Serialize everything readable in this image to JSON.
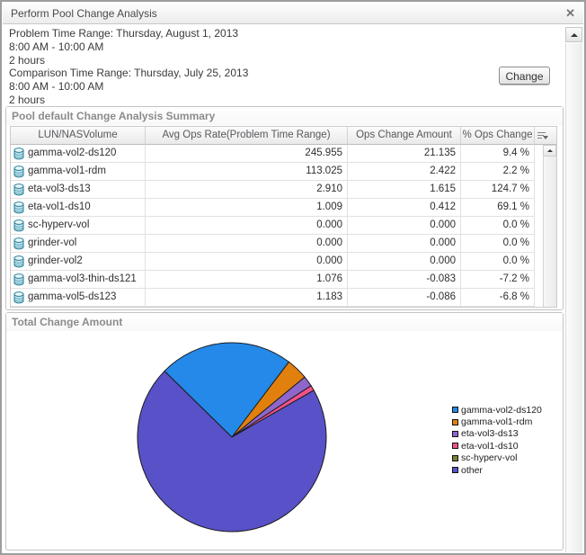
{
  "window": {
    "title": "Perform Pool Change Analysis",
    "close_label": "✕"
  },
  "header": {
    "problem": {
      "range": "Problem Time Range: Thursday, August 1, 2013",
      "time": "8:00 AM - 10:00 AM",
      "duration": "2 hours"
    },
    "comparison": {
      "range": "Comparison Time Range: Thursday, July 25, 2013",
      "time": "8:00 AM - 10:00 AM",
      "duration": "2 hours"
    },
    "change_button": "Change"
  },
  "summary_panel": {
    "title": "Pool default Change Analysis Summary",
    "columns": [
      "LUN/NASVolume",
      "Avg Ops Rate(Problem Time Range)",
      "Ops Change Amount",
      "% Ops Change"
    ],
    "rows": [
      {
        "name": "gamma-vol2-ds120",
        "avg_ops_rate": "245.955",
        "ops_change_amount": "21.135",
        "pct_ops_change": "9.4 %"
      },
      {
        "name": "gamma-vol1-rdm",
        "avg_ops_rate": "113.025",
        "ops_change_amount": "2.422",
        "pct_ops_change": "2.2 %"
      },
      {
        "name": "eta-vol3-ds13",
        "avg_ops_rate": "2.910",
        "ops_change_amount": "1.615",
        "pct_ops_change": "124.7 %"
      },
      {
        "name": "eta-vol1-ds10",
        "avg_ops_rate": "1.009",
        "ops_change_amount": "0.412",
        "pct_ops_change": "69.1 %"
      },
      {
        "name": "sc-hyperv-vol",
        "avg_ops_rate": "0.000",
        "ops_change_amount": "0.000",
        "pct_ops_change": "0.0 %"
      },
      {
        "name": "grinder-vol",
        "avg_ops_rate": "0.000",
        "ops_change_amount": "0.000",
        "pct_ops_change": "0.0 %"
      },
      {
        "name": "grinder-vol2",
        "avg_ops_rate": "0.000",
        "ops_change_amount": "0.000",
        "pct_ops_change": "0.0 %"
      },
      {
        "name": "gamma-vol3-thin-ds121",
        "avg_ops_rate": "1.076",
        "ops_change_amount": "-0.083",
        "pct_ops_change": "-7.2 %"
      },
      {
        "name": "gamma-vol5-ds123",
        "avg_ops_rate": "1.183",
        "ops_change_amount": "-0.086",
        "pct_ops_change": "-6.8 %"
      }
    ]
  },
  "chart_panel": {
    "title": "Total Change Amount"
  },
  "chart_data": {
    "type": "pie",
    "title": "Total Change Amount",
    "slices": [
      {
        "label": "gamma-vol2-ds120",
        "percent": 23.0,
        "color": "#2489E8"
      },
      {
        "label": "gamma-vol1-rdm",
        "percent": 3.7,
        "color": "#E2800E"
      },
      {
        "label": "eta-vol3-ds13",
        "percent": 1.8,
        "color": "#8E66CC"
      },
      {
        "label": "eta-vol1-ds10",
        "percent": 0.9,
        "color": "#F0538C"
      },
      {
        "label": "sc-hyperv-vol",
        "percent": 0.0,
        "color": "#7B8034"
      },
      {
        "label": "other",
        "percent": 70.6,
        "color": "#5951C7"
      }
    ],
    "legend_position": "right",
    "start_angle_deg": 135.6,
    "outline_color": "#1b1b1b"
  }
}
